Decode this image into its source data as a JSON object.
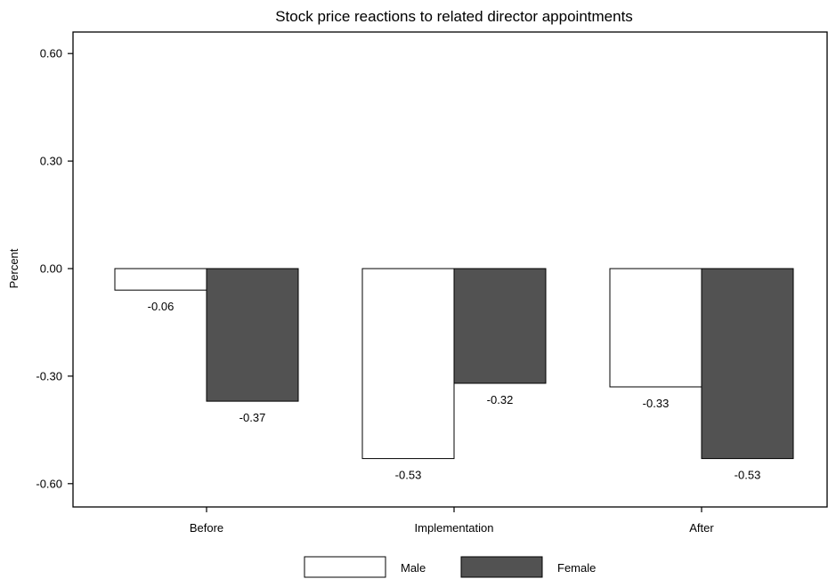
{
  "chart_data": {
    "type": "bar",
    "title": "Stock price reactions to related director appointments",
    "xlabel": "",
    "ylabel": "Percent",
    "categories": [
      "Before",
      "Implementation",
      "After"
    ],
    "series": [
      {
        "name": "Male",
        "values": [
          -0.06,
          -0.53,
          -0.33
        ],
        "labels": [
          "-0.06",
          "-0.53",
          "-0.33"
        ],
        "color": "#ffffff"
      },
      {
        "name": "Female",
        "values": [
          -0.37,
          -0.32,
          -0.53
        ],
        "labels": [
          "-0.37",
          "-0.32",
          "-0.53"
        ],
        "color": "#525252"
      }
    ],
    "yticks": [
      0.6,
      0.3,
      0.0,
      -0.3,
      -0.6
    ],
    "ytick_labels": [
      "0.60",
      "0.30",
      "0.00",
      "-0.30",
      "-0.60"
    ],
    "ylim": [
      -0.66,
      0.66
    ],
    "grid": false,
    "legend_position": "bottom"
  }
}
